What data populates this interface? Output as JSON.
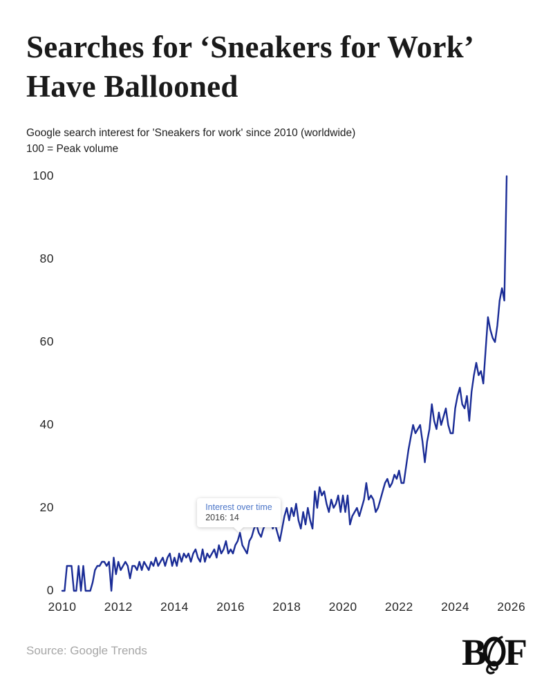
{
  "header": {
    "title": "Searches for ‘Sneakers for Work’ Have Ballooned",
    "subtitle_line1": "Google search interest for 'Sneakers for work' since 2010 (worldwide)",
    "subtitle_line2": "100 = Peak volume"
  },
  "footer": {
    "source": "Source: Google Trends",
    "logo_letter_b": "B",
    "logo_letter_f": "F"
  },
  "chart_data": {
    "type": "line",
    "title": "Google search interest for 'Sneakers for work' since 2010 (worldwide)",
    "ylabel_note": "100 = Peak volume",
    "frequency": "monthly",
    "start": "2010-01",
    "end": "2025-11",
    "ylim": [
      0,
      100
    ],
    "yticks": [
      0,
      20,
      40,
      60,
      80,
      100
    ],
    "xticks": [
      2010,
      2012,
      2014,
      2016,
      2018,
      2020,
      2022,
      2024,
      2026
    ],
    "grid": false,
    "line_color": "#1a2c96",
    "values": [
      0,
      0,
      6,
      6,
      6,
      0,
      0,
      6,
      0,
      6,
      0,
      0,
      0,
      2,
      5,
      6,
      6,
      7,
      7,
      6,
      7,
      0,
      8,
      4,
      7,
      5,
      6,
      7,
      6,
      3,
      6,
      6,
      5,
      7,
      5,
      7,
      6,
      5,
      7,
      6,
      8,
      6,
      7,
      8,
      6,
      8,
      9,
      6,
      8,
      6,
      9,
      7,
      9,
      8,
      9,
      7,
      9,
      10,
      8,
      7,
      10,
      7,
      9,
      8,
      9,
      10,
      8,
      11,
      9,
      10,
      12,
      9,
      10,
      9,
      11,
      12,
      14,
      11,
      10,
      9,
      12,
      13,
      15,
      16,
      14,
      13,
      15,
      16,
      18,
      17,
      15,
      16,
      14,
      12,
      15,
      18,
      20,
      17,
      20,
      18,
      21,
      17,
      15,
      19,
      16,
      20,
      17,
      15,
      24,
      20,
      25,
      23,
      24,
      21,
      19,
      22,
      20,
      21,
      23,
      19,
      23,
      19,
      23,
      16,
      18,
      19,
      20,
      18,
      20,
      22,
      26,
      22,
      23,
      22,
      19,
      20,
      22,
      24,
      26,
      27,
      25,
      26,
      28,
      27,
      29,
      26,
      26,
      30,
      34,
      37,
      40,
      38,
      39,
      40,
      36,
      31,
      36,
      39,
      45,
      41,
      39,
      43,
      40,
      42,
      44,
      40,
      38,
      38,
      44,
      47,
      49,
      45,
      44,
      47,
      41,
      48,
      52,
      55,
      52,
      53,
      50,
      58,
      66,
      63,
      61,
      60,
      64,
      70,
      73,
      70,
      100
    ],
    "tooltip": {
      "title": "Interest over time",
      "label": "2016: 14",
      "anchor_index": 76,
      "anchor_value": 14
    }
  }
}
